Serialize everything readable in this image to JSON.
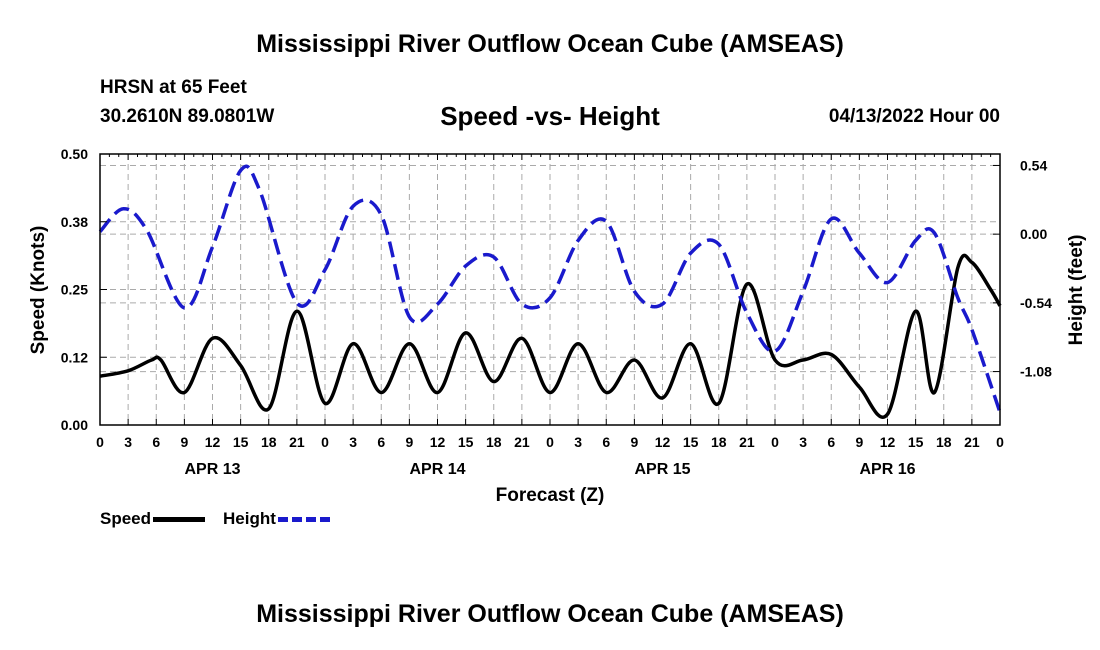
{
  "header": {
    "title": "Mississippi River Outflow Ocean Cube (AMSEAS)",
    "station": "HRSN at 65 Feet",
    "coords": "30.2610N  89.0801W",
    "subtitle": "Speed -vs- Height",
    "date": "04/13/2022 Hour 00"
  },
  "footer": {
    "title": "Mississippi River Outflow Ocean Cube (AMSEAS)"
  },
  "legend": {
    "speed_label": "Speed",
    "height_label": "Height"
  },
  "colors": {
    "speed": "#000000",
    "height": "#1a1acc",
    "grid": "#aaaaaa"
  },
  "chart_data": {
    "type": "line",
    "xlabel": "Forecast (Z)",
    "ylabel_left": "Speed (Knots)",
    "ylabel_right": "Height (feet)",
    "x_range_hours": [
      0,
      96
    ],
    "y_left_range": [
      0,
      0.5
    ],
    "y_right_range": [
      -1.5,
      0.63
    ],
    "y_left_ticks": [
      "0.00",
      "0.12",
      "0.25",
      "0.38",
      "0.50"
    ],
    "y_left_tick_values": [
      0,
      0.125,
      0.25,
      0.375,
      0.5
    ],
    "y_right_ticks": [
      "0.54",
      "0.00",
      "-0.54",
      "-1.08"
    ],
    "y_right_tick_values": [
      0.54,
      0,
      -0.54,
      -1.08
    ],
    "x_tick_labels": [
      "0",
      "3",
      "6",
      "9",
      "12",
      "15",
      "18",
      "21",
      "0",
      "3",
      "6",
      "9",
      "12",
      "15",
      "18",
      "21",
      "0",
      "3",
      "6",
      "9",
      "12",
      "15",
      "18",
      "21",
      "0",
      "3",
      "6",
      "9",
      "12",
      "15",
      "18",
      "21",
      "0"
    ],
    "day_labels": [
      {
        "label": "APR 13",
        "hour": 12
      },
      {
        "label": "APR 14",
        "hour": 36
      },
      {
        "label": "APR 15",
        "hour": 60
      },
      {
        "label": "APR 16",
        "hour": 84
      }
    ],
    "grid": true,
    "series": [
      {
        "name": "Speed",
        "axis": "left",
        "style": "solid",
        "points": [
          [
            0,
            0.09
          ],
          [
            3,
            0.1
          ],
          [
            5.5,
            0.12
          ],
          [
            6.5,
            0.12
          ],
          [
            9,
            0.06
          ],
          [
            12,
            0.16
          ],
          [
            15,
            0.11
          ],
          [
            18,
            0.03
          ],
          [
            21,
            0.21
          ],
          [
            24,
            0.04
          ],
          [
            27,
            0.15
          ],
          [
            30,
            0.06
          ],
          [
            33,
            0.15
          ],
          [
            36,
            0.06
          ],
          [
            39,
            0.17
          ],
          [
            42,
            0.08
          ],
          [
            45,
            0.16
          ],
          [
            48,
            0.06
          ],
          [
            51,
            0.15
          ],
          [
            54,
            0.06
          ],
          [
            57,
            0.12
          ],
          [
            60,
            0.05
          ],
          [
            63,
            0.15
          ],
          [
            66,
            0.04
          ],
          [
            69,
            0.26
          ],
          [
            72,
            0.12
          ],
          [
            75,
            0.12
          ],
          [
            78,
            0.13
          ],
          [
            81,
            0.07
          ],
          [
            84,
            0.02
          ],
          [
            87,
            0.21
          ],
          [
            89,
            0.06
          ],
          [
            91.5,
            0.29
          ],
          [
            93,
            0.3
          ],
          [
            95,
            0.25
          ],
          [
            96,
            0.22
          ]
        ]
      },
      {
        "name": "Height",
        "axis": "right",
        "style": "dashed",
        "points": [
          [
            0,
            0.02
          ],
          [
            2.5,
            0.2
          ],
          [
            5,
            0.03
          ],
          [
            9,
            -0.58
          ],
          [
            12,
            -0.1
          ],
          [
            15,
            0.5
          ],
          [
            17,
            0.35
          ],
          [
            21,
            -0.54
          ],
          [
            24,
            -0.28
          ],
          [
            27,
            0.22
          ],
          [
            30,
            0.15
          ],
          [
            33,
            -0.65
          ],
          [
            36,
            -0.55
          ],
          [
            39,
            -0.25
          ],
          [
            42,
            -0.18
          ],
          [
            45,
            -0.55
          ],
          [
            48,
            -0.5
          ],
          [
            51,
            -0.05
          ],
          [
            54,
            0.1
          ],
          [
            57,
            -0.45
          ],
          [
            60,
            -0.55
          ],
          [
            63,
            -0.15
          ],
          [
            66,
            -0.08
          ],
          [
            69,
            -0.62
          ],
          [
            72,
            -0.92
          ],
          [
            75,
            -0.45
          ],
          [
            78,
            0.12
          ],
          [
            81,
            -0.15
          ],
          [
            84,
            -0.38
          ],
          [
            87,
            -0.05
          ],
          [
            89,
            0.01
          ],
          [
            91.5,
            -0.5
          ],
          [
            93,
            -0.75
          ],
          [
            96,
            -1.4
          ]
        ]
      }
    ]
  }
}
